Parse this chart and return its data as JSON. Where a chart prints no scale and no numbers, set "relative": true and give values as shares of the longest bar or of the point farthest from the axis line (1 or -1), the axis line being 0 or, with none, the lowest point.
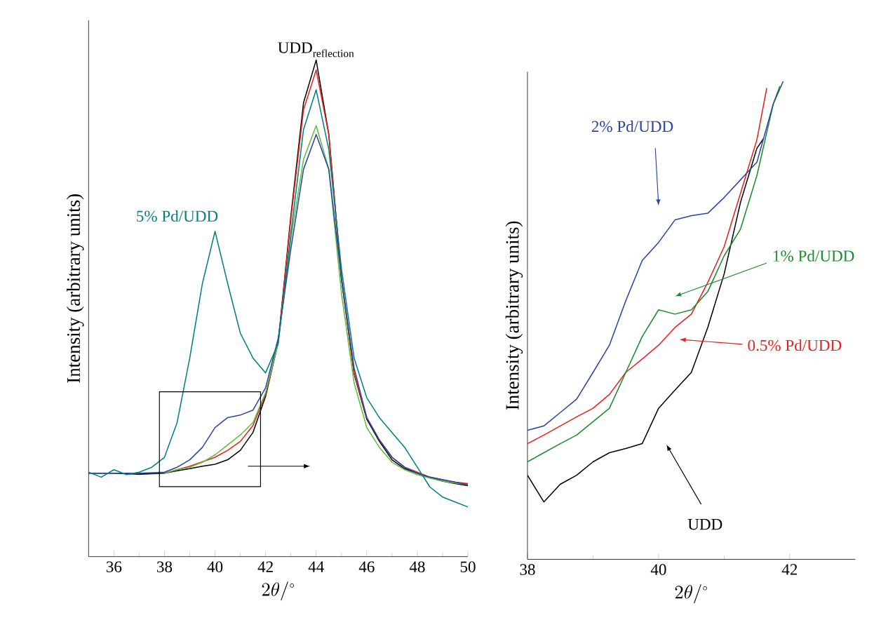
{
  "chart_data": [
    {
      "type": "line",
      "relative": true,
      "xlabel": "2\\theta/^{\\circ}",
      "ylabel": "Intensity (arbitrary units)",
      "xlim": [
        35,
        50
      ],
      "xticks": [
        36,
        38,
        40,
        42,
        44,
        46,
        48,
        50
      ],
      "annotations": [
        {
          "text": "\\mathrm{UDD}_{\\mathrm{reflection}}",
          "x": 44,
          "y": 1.0
        }
      ],
      "series": [
        {
          "color": "#000000",
          "x": [
            35,
            36,
            37,
            38,
            38.5,
            39,
            39.5,
            40,
            40.5,
            41,
            41.5,
            42,
            42.5,
            43,
            43.5,
            44,
            44.5,
            45,
            45.5,
            46,
            46.5,
            47,
            47.5,
            48,
            48.5,
            49,
            49.5,
            50
          ],
          "values": [
            0.168,
            0.168,
            0.166,
            0.168,
            0.173,
            0.177,
            0.182,
            0.186,
            0.195,
            0.214,
            0.25,
            0.323,
            0.432,
            0.686,
            0.914,
            1.0,
            0.85,
            0.559,
            0.368,
            0.277,
            0.232,
            0.195,
            0.177,
            0.168,
            0.159,
            0.152,
            0.147,
            0.143
          ]
        },
        {
          "color": "#e8201e",
          "x": [
            38,
            38.5,
            39,
            39.5,
            40,
            40.5,
            41,
            41.5,
            42,
            42.5,
            43,
            43.5,
            44,
            44.5,
            45,
            45.5,
            46,
            46.5,
            47,
            47.5,
            48,
            48.5,
            49,
            49.5,
            50
          ],
          "values": [
            0.168,
            0.175,
            0.182,
            0.191,
            0.2,
            0.214,
            0.232,
            0.264,
            0.327,
            0.432,
            0.68,
            0.9,
            0.98,
            0.85,
            0.56,
            0.37,
            0.28,
            0.235,
            0.2,
            0.18,
            0.17,
            0.16,
            0.155,
            0.15,
            0.147
          ]
        },
        {
          "color": "#5bbf3a",
          "x": [
            38,
            38.5,
            39,
            39.5,
            40,
            40.5,
            41,
            41.5,
            42,
            42.5,
            43,
            43.5,
            44,
            44.5,
            45,
            45.5,
            46,
            46.5,
            47,
            47.5,
            48,
            48.5,
            49,
            49.5,
            50
          ],
          "values": [
            0.168,
            0.175,
            0.18,
            0.19,
            0.205,
            0.225,
            0.245,
            0.27,
            0.33,
            0.43,
            0.64,
            0.8,
            0.868,
            0.78,
            0.53,
            0.35,
            0.26,
            0.22,
            0.19,
            0.175,
            0.165,
            0.158,
            0.152,
            0.148,
            0.145
          ]
        },
        {
          "color": "#2b44a8",
          "x": [
            35,
            36,
            37,
            38,
            38.5,
            39,
            39.5,
            40,
            40.5,
            41,
            41.5,
            42,
            42.5,
            43,
            43.5,
            44,
            44.5,
            45,
            45.5,
            46,
            46.5,
            47,
            47.5,
            48,
            48.5,
            49,
            49.5,
            50
          ],
          "values": [
            0.168,
            0.168,
            0.168,
            0.17,
            0.18,
            0.195,
            0.22,
            0.26,
            0.28,
            0.285,
            0.295,
            0.34,
            0.44,
            0.62,
            0.78,
            0.85,
            0.78,
            0.56,
            0.38,
            0.28,
            0.235,
            0.2,
            0.18,
            0.168,
            0.16,
            0.155,
            0.15,
            0.145
          ]
        },
        {
          "name": "5% Pd/UDD",
          "color": "#008080",
          "x": [
            35,
            35.5,
            36,
            36.5,
            37,
            37.5,
            38,
            38.5,
            39,
            39.5,
            40,
            40.5,
            41,
            41.5,
            42,
            42.5,
            43,
            43.5,
            44,
            44.5,
            45,
            45.5,
            46,
            46.5,
            47,
            47.5,
            48,
            48.5,
            49,
            49.5,
            50
          ],
          "values": [
            0.17,
            0.16,
            0.175,
            0.165,
            0.17,
            0.18,
            0.2,
            0.27,
            0.4,
            0.55,
            0.655,
            0.55,
            0.45,
            0.4,
            0.37,
            0.43,
            0.65,
            0.86,
            0.94,
            0.82,
            0.58,
            0.4,
            0.32,
            0.28,
            0.25,
            0.22,
            0.18,
            0.14,
            0.12,
            0.11,
            0.1
          ]
        }
      ]
    },
    {
      "type": "line",
      "relative": true,
      "xlabel": "2\\theta/^{\\circ}",
      "ylabel": "Intensity (arbitrary units)",
      "xlim": [
        38,
        43
      ],
      "xticks": [
        38,
        40,
        42
      ],
      "series": [
        {
          "name": "UDD",
          "color": "#000000",
          "x": [
            38,
            38.25,
            38.5,
            38.75,
            39,
            39.25,
            39.5,
            39.75,
            40,
            40.25,
            40.5,
            40.75,
            41,
            41.25,
            41.5,
            41.6
          ],
          "values": [
            0.176,
            0.12,
            0.157,
            0.176,
            0.204,
            0.223,
            0.232,
            0.242,
            0.316,
            0.354,
            0.391,
            0.485,
            0.597,
            0.747,
            0.86,
            0.88
          ]
        },
        {
          "name": "0.5% Pd/UDD",
          "color": "#e8201e",
          "x": [
            38,
            38.25,
            38.5,
            38.75,
            39,
            39.25,
            39.5,
            39.75,
            40,
            40.25,
            40.5,
            40.75,
            41,
            41.25,
            41.5,
            41.65
          ],
          "values": [
            0.242,
            0.26,
            0.279,
            0.298,
            0.316,
            0.345,
            0.391,
            0.419,
            0.448,
            0.485,
            0.513,
            0.579,
            0.654,
            0.766,
            0.878,
            0.986
          ]
        },
        {
          "name": "1% Pd/UDD",
          "color": "#1e8a2e",
          "x": [
            38,
            38.25,
            38.5,
            38.75,
            39,
            39.25,
            39.5,
            39.75,
            40,
            40.25,
            40.5,
            40.75,
            41,
            41.25,
            41.5,
            41.75,
            41.85
          ],
          "values": [
            0.204,
            0.223,
            0.242,
            0.26,
            0.288,
            0.316,
            0.391,
            0.466,
            0.522,
            0.513,
            0.522,
            0.56,
            0.635,
            0.691,
            0.803,
            0.953,
            0.99
          ]
        },
        {
          "name": "2% Pd/UDD",
          "color": "#2b44a8",
          "x": [
            38,
            38.25,
            38.5,
            38.75,
            39,
            39.25,
            39.5,
            39.75,
            40,
            40.25,
            40.5,
            40.75,
            41,
            41.25,
            41.5,
            41.75,
            41.9
          ],
          "values": [
            0.27,
            0.279,
            0.307,
            0.335,
            0.391,
            0.448,
            0.541,
            0.625,
            0.663,
            0.71,
            0.719,
            0.724,
            0.757,
            0.794,
            0.831,
            0.953,
            1.0
          ]
        }
      ]
    }
  ]
}
